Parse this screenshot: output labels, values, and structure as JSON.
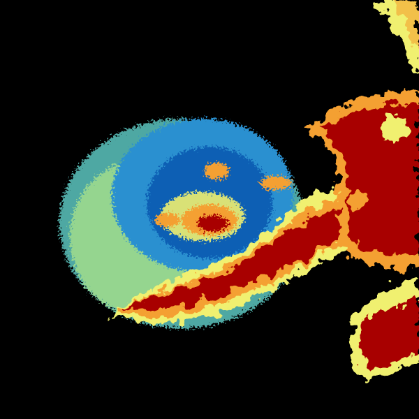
{
  "background": "#000000",
  "colormap": {
    "very_low": "#0a5fb4",
    "low": "#2a90d0",
    "low_mid": "#5cc6c0",
    "mid": "#a8e08a",
    "mid_high": "#f0f070",
    "high": "#f4a030",
    "very_high": "#e03010",
    "extreme": "#a80000"
  }
}
